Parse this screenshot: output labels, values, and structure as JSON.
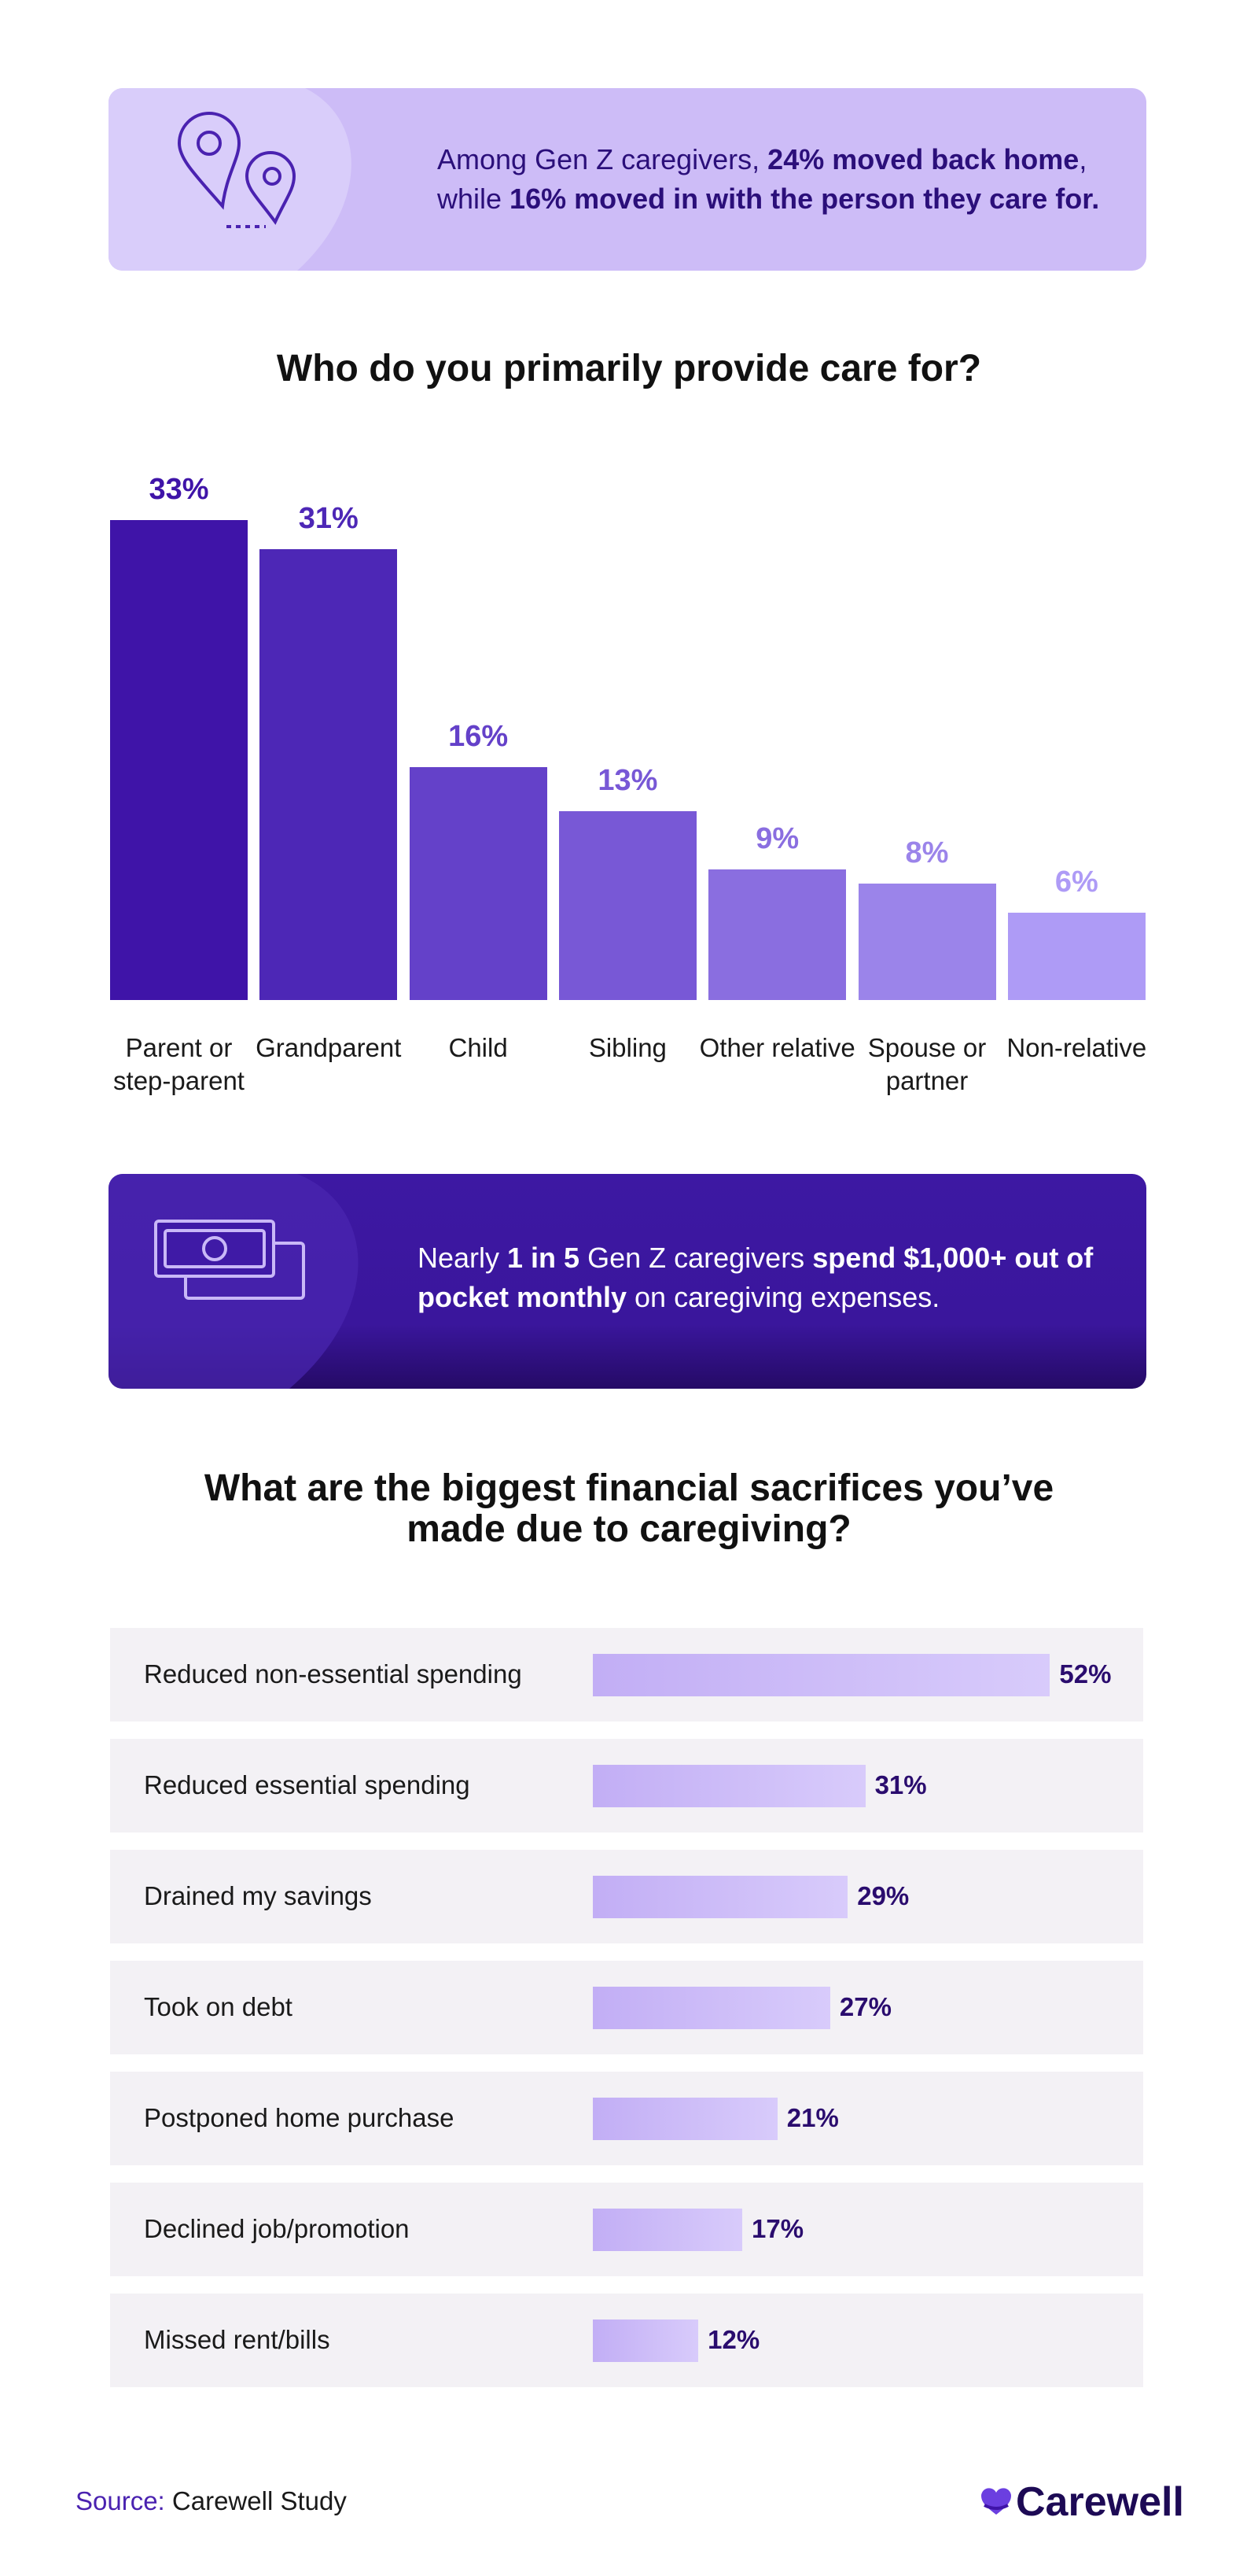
{
  "callouts": [
    {
      "segments": [
        {
          "text": "Among Gen Z caregivers, ",
          "bold": false
        },
        {
          "text": "24% moved back home",
          "bold": true
        },
        {
          "text": ", while ",
          "bold": false
        },
        {
          "text": "16% moved in with the person they care for.",
          "bold": true
        }
      ]
    },
    {
      "segments": [
        {
          "text": "Nearly ",
          "bold": false
        },
        {
          "text": "1 in 5",
          "bold": true
        },
        {
          "text": " Gen Z caregivers ",
          "bold": false
        },
        {
          "text": "spend $1,000+ out of pocket monthly",
          "bold": true
        },
        {
          "text": " on caregiving expenses.",
          "bold": false
        }
      ]
    }
  ],
  "chart_data": [
    {
      "type": "bar",
      "title": "Who do you primarily provide care for?",
      "categories": [
        "Parent or step-parent",
        "Grandparent",
        "Child",
        "Sibling",
        "Other relative",
        "Spouse or partner",
        "Non-relative"
      ],
      "values": [
        33,
        31,
        16,
        13,
        9,
        8,
        6
      ],
      "value_labels": [
        "33%",
        "31%",
        "16%",
        "13%",
        "9%",
        "8%",
        "6%"
      ],
      "colors": [
        "#3f14a8",
        "#4d27b6",
        "#6441c9",
        "#7858d6",
        "#8a6ee0",
        "#9b84ea",
        "#ae9bf6"
      ]
    },
    {
      "type": "barh",
      "title": "What are the biggest financial sacrifices you’ve made due to caregiving?",
      "categories": [
        "Reduced non-essential spending",
        "Reduced essential spending",
        "Drained my savings",
        "Took on debt",
        "Postponed home purchase",
        "Declined job/promotion",
        "Missed rent/bills"
      ],
      "values": [
        52,
        31,
        29,
        27,
        21,
        17,
        12
      ],
      "value_labels": [
        "52%",
        "31%",
        "29%",
        "27%",
        "21%",
        "17%",
        "12%"
      ],
      "color": "#c9b8f7"
    }
  ],
  "footer": {
    "source_label": "Source:",
    "source": "Carewell Study",
    "brand": "Carewell"
  }
}
